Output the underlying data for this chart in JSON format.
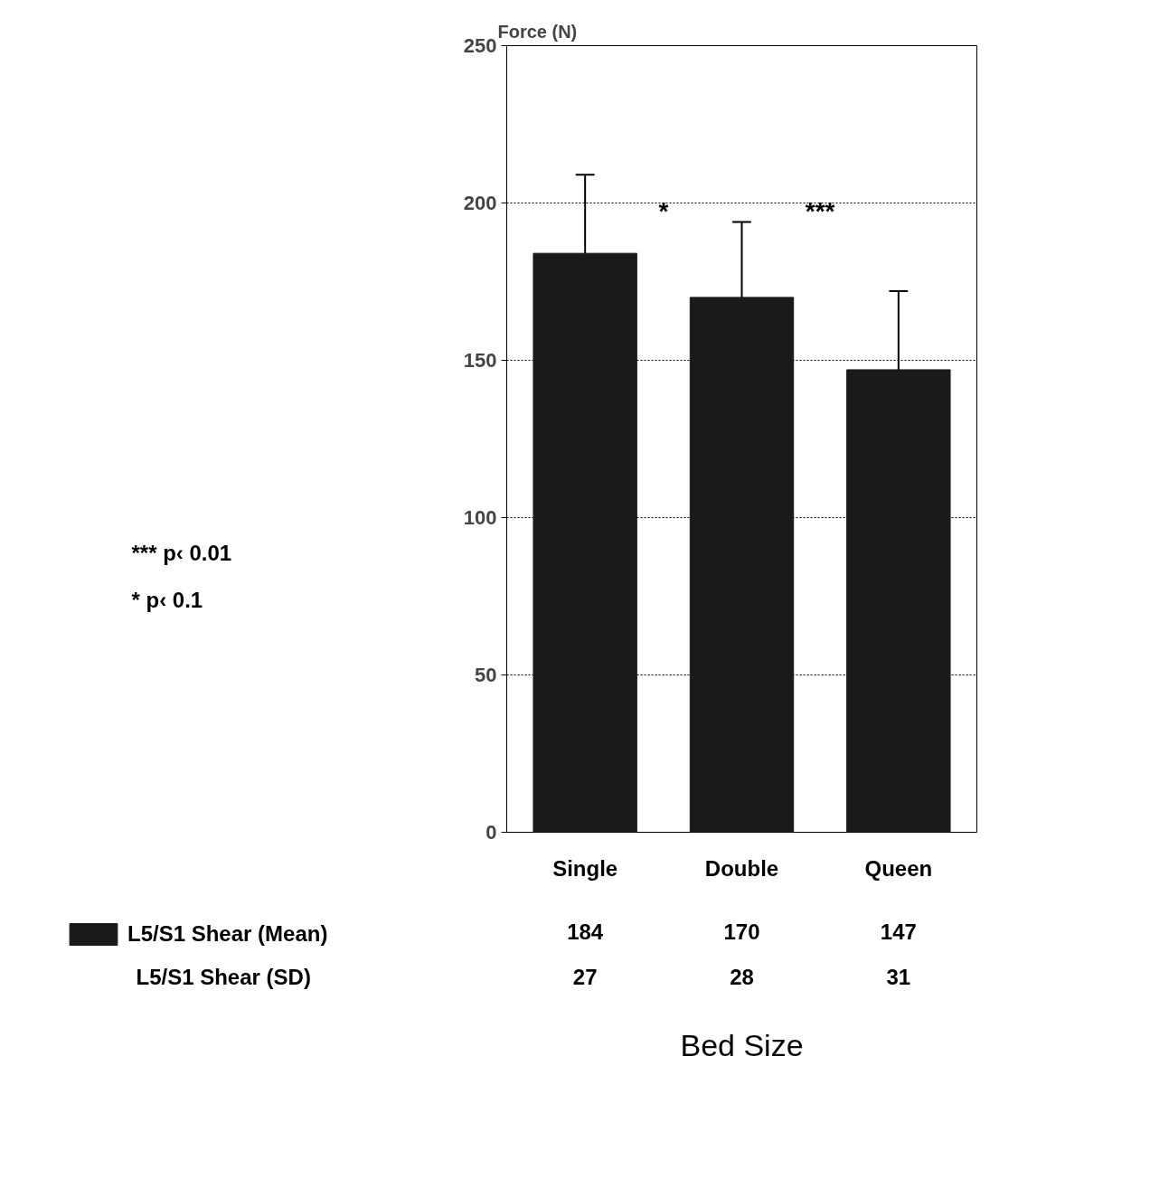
{
  "chart_data": {
    "type": "bar",
    "ylabel": "Force (N)",
    "xlabel": "Bed Size",
    "categories": [
      "Single",
      "Double",
      "Queen"
    ],
    "series": [
      {
        "name": "L5/S1 Shear (Mean)",
        "color": "#1a1a1a",
        "values": [
          184,
          170,
          147
        ],
        "errors": [
          [
            184,
            209
          ],
          [
            170,
            194
          ],
          [
            147,
            172
          ]
        ]
      }
    ],
    "ylim": [
      0,
      250
    ],
    "yticks": [
      0,
      50,
      100,
      150,
      200,
      250
    ],
    "grid": "y",
    "legend": "bottom",
    "data_labels": true,
    "annotations": [
      "*** p‹ 0.01",
      "* p‹ 0.1",
      "*",
      "***",
      "L5/S1 Shear (SD)",
      "27",
      "28",
      "31"
    ]
  }
}
